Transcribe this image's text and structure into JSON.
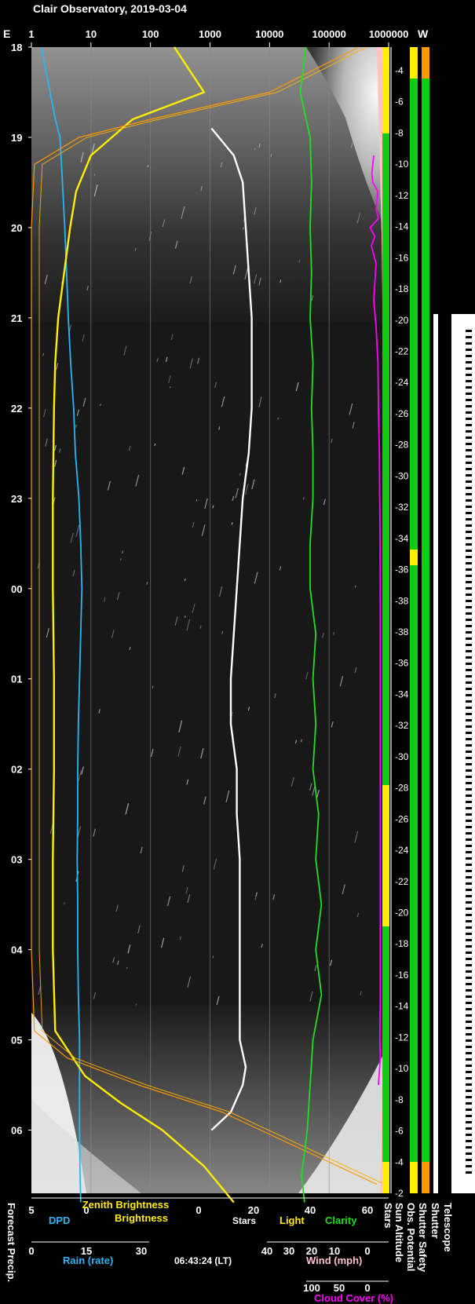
{
  "chart_data": {
    "type": "line",
    "title": "Clair Observatory, 2019-03-04",
    "top_axis": {
      "left_label": "E",
      "right_label": "W",
      "ticks": [
        "1",
        "10",
        "100",
        "1000",
        "10000",
        "100000",
        "1000000"
      ]
    },
    "time_ticks": [
      "18",
      "19",
      "20",
      "21",
      "22",
      "23",
      "00",
      "01",
      "02",
      "03",
      "04",
      "05",
      "06"
    ],
    "sun_altitude_ticks": [
      -4,
      -6,
      -8,
      -10,
      -12,
      -14,
      -16,
      -18,
      -20,
      -22,
      -24,
      -26,
      -28,
      -30,
      -32,
      -34,
      -36,
      -38,
      -38,
      -36,
      -34,
      -32,
      -30,
      -28,
      -26,
      -24,
      -22,
      -20,
      -18,
      -16,
      -14,
      -12,
      -10,
      -8,
      -6,
      -4,
      -2
    ],
    "bottom_axes": {
      "row1": {
        "ticks": [
          "5",
          "0",
          "0",
          "20",
          "40",
          "60"
        ],
        "labels": [
          "DPD",
          "Zenith Brightness",
          "Stars",
          "Light",
          "Clarity"
        ]
      },
      "row2": {
        "ticks": [
          "0",
          "15",
          "30",
          "40",
          "30",
          "20",
          "10",
          "0"
        ],
        "labels": [
          "Rain (rate)",
          "Wind (mph)"
        ],
        "timestamp": "06:43:24 (LT)"
      },
      "row3": {
        "ticks": [
          "100",
          "50",
          "0"
        ],
        "labels": [
          "Cloud Cover (%)"
        ]
      }
    },
    "vertical_labels": [
      "Forecast Precip.",
      "Stars",
      "Sun Altitude",
      "Obs. Potential",
      "Shutter Safety",
      "Shutter",
      "Telescope"
    ],
    "series": [
      {
        "name": "DPD",
        "color": "#29b6f6",
        "unit": "°",
        "axis": "5..0",
        "points": [
          [
            18.0,
            0.2
          ],
          [
            18.4,
            -1.0
          ],
          [
            18.8,
            -2.2
          ],
          [
            19.0,
            -3.0
          ],
          [
            19.5,
            -3.4
          ],
          [
            20.0,
            -3.8
          ],
          [
            20.5,
            -4.1
          ],
          [
            21.0,
            -4.4
          ],
          [
            21.5,
            -4.8
          ],
          [
            22.0,
            -5.3
          ],
          [
            22.5,
            -5.6
          ],
          [
            23.0,
            -6.2
          ],
          [
            23.5,
            -6.5
          ],
          [
            24.0,
            -6.7
          ],
          [
            24.5,
            -6.5
          ],
          [
            25.0,
            -6.3
          ],
          [
            25.5,
            -6.1
          ],
          [
            26.0,
            -6.0
          ],
          [
            26.5,
            -6.0
          ],
          [
            27.0,
            -5.9
          ],
          [
            27.5,
            -6.0
          ],
          [
            28.0,
            -6.0
          ],
          [
            28.5,
            -6.1
          ],
          [
            29.0,
            -6.3
          ],
          [
            29.5,
            -6.3
          ],
          [
            30.0,
            -6.3
          ],
          [
            30.5,
            -6.4
          ],
          [
            30.8,
            -6.5
          ]
        ]
      },
      {
        "name": "Zenith Brightness",
        "color": "#ffee00",
        "unit": "log",
        "axis": "1..1000000",
        "points": [
          [
            18.0,
            2.4
          ],
          [
            18.5,
            2.9
          ],
          [
            18.8,
            1.7
          ],
          [
            19.2,
            1.0
          ],
          [
            19.6,
            0.75
          ],
          [
            20.0,
            0.65
          ],
          [
            20.5,
            0.55
          ],
          [
            21.0,
            0.45
          ],
          [
            21.5,
            0.4
          ],
          [
            22.0,
            0.38
          ],
          [
            23.0,
            0.36
          ],
          [
            24.0,
            0.36
          ],
          [
            25.0,
            0.38
          ],
          [
            26.0,
            0.38
          ],
          [
            27.0,
            0.36
          ],
          [
            28.0,
            0.36
          ],
          [
            28.9,
            0.4
          ],
          [
            29.1,
            0.6
          ],
          [
            29.4,
            0.9
          ],
          [
            29.7,
            1.5
          ],
          [
            30.0,
            2.2
          ],
          [
            30.4,
            2.9
          ],
          [
            30.8,
            3.4
          ]
        ]
      },
      {
        "name": "Stars",
        "color": "#ffffff",
        "unit": "count",
        "axis": "0..60",
        "points": [
          [
            18.9,
            0.5
          ],
          [
            19.2,
            8
          ],
          [
            19.5,
            11
          ],
          [
            20.0,
            12
          ],
          [
            20.5,
            13
          ],
          [
            21.0,
            14
          ],
          [
            21.5,
            14
          ],
          [
            22.0,
            14
          ],
          [
            22.5,
            13
          ],
          [
            23.0,
            11
          ],
          [
            23.5,
            10
          ],
          [
            24.0,
            9
          ],
          [
            24.5,
            8
          ],
          [
            25.0,
            7
          ],
          [
            25.5,
            7
          ],
          [
            26.0,
            9
          ],
          [
            26.5,
            9
          ],
          [
            27.0,
            10
          ],
          [
            27.5,
            10
          ],
          [
            28.0,
            10
          ],
          [
            28.5,
            10
          ],
          [
            29.0,
            10
          ],
          [
            29.3,
            12
          ],
          [
            29.5,
            11
          ],
          [
            29.8,
            7
          ],
          [
            30.0,
            0.5
          ]
        ]
      },
      {
        "name": "Light",
        "color": "#ff9900",
        "unit": "log",
        "axis": "1..1000000",
        "points": [
          [
            18.0,
            5.5
          ],
          [
            18.5,
            4.0
          ],
          [
            18.8,
            2.0
          ],
          [
            19.0,
            0.8
          ],
          [
            19.3,
            0.05
          ],
          [
            20.0,
            0
          ],
          [
            22.0,
            0
          ],
          [
            24.0,
            0
          ],
          [
            26.0,
            0
          ],
          [
            28.0,
            0
          ],
          [
            28.9,
            0.05
          ],
          [
            29.2,
            0.6
          ],
          [
            29.5,
            1.8
          ],
          [
            29.8,
            3.2
          ],
          [
            30.2,
            4.5
          ],
          [
            30.6,
            5.8
          ]
        ]
      },
      {
        "name": "Clarity",
        "color": "#22dd22",
        "unit": "index",
        "axis": "20..60",
        "points": [
          [
            18.0,
            38.5
          ],
          [
            18.5,
            36.5
          ],
          [
            19.0,
            40
          ],
          [
            19.5,
            40.5
          ],
          [
            20.0,
            40
          ],
          [
            20.5,
            40.5
          ],
          [
            21.0,
            40
          ],
          [
            21.5,
            41
          ],
          [
            22.0,
            40.5
          ],
          [
            22.5,
            41
          ],
          [
            23.0,
            41
          ],
          [
            23.5,
            40
          ],
          [
            24.0,
            40
          ],
          [
            24.5,
            42
          ],
          [
            25.0,
            41
          ],
          [
            25.5,
            42
          ],
          [
            26.0,
            41
          ],
          [
            26.5,
            43
          ],
          [
            27.0,
            42
          ],
          [
            27.5,
            44
          ],
          [
            28.0,
            42
          ],
          [
            28.5,
            44
          ],
          [
            29.0,
            41
          ],
          [
            29.5,
            40
          ],
          [
            30.0,
            39
          ],
          [
            30.5,
            37
          ],
          [
            30.8,
            38
          ]
        ]
      },
      {
        "name": "Cloud Cover",
        "color": "#ff00ff",
        "unit": "%",
        "axis": "100..0",
        "points": [
          [
            19.2,
            30
          ],
          [
            19.4,
            38
          ],
          [
            19.5,
            34
          ],
          [
            19.6,
            12
          ],
          [
            19.8,
            20
          ],
          [
            19.9,
            10
          ],
          [
            20.0,
            45
          ],
          [
            20.1,
            25
          ],
          [
            20.2,
            40
          ],
          [
            20.4,
            20
          ],
          [
            20.8,
            30
          ],
          [
            21.1,
            20
          ],
          [
            21.5,
            12
          ],
          [
            22.0,
            10
          ],
          [
            22.5,
            6
          ],
          [
            23.5,
            3
          ],
          [
            24.5,
            2
          ],
          [
            25.5,
            2
          ],
          [
            26.5,
            2
          ],
          [
            27.5,
            2
          ],
          [
            28.5,
            2
          ],
          [
            29.0,
            4
          ],
          [
            29.2,
            2
          ],
          [
            29.5,
            10
          ]
        ]
      }
    ],
    "status_bars": {
      "stars": {
        "colors": [
          "#ffee00",
          "#11cc11"
        ]
      },
      "obs_potential": {
        "colors": [
          "#ffee00",
          "#11cc11"
        ]
      },
      "shutter_safety": {
        "colors": [
          "#ff9900",
          "#11cc11"
        ]
      }
    },
    "ylim": [
      18.0,
      30.7
    ],
    "grid": true
  }
}
